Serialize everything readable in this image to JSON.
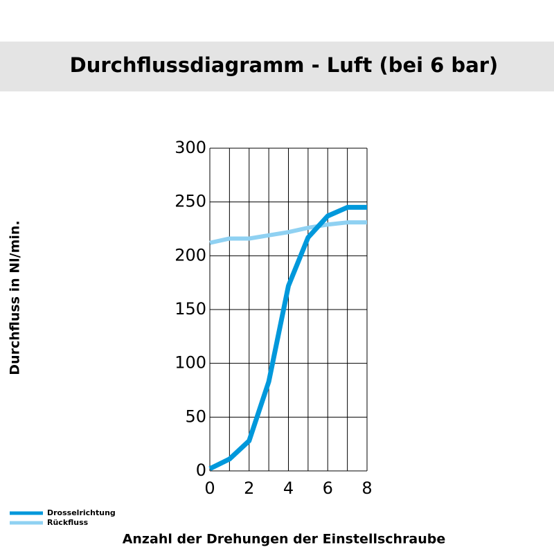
{
  "chart_data": {
    "type": "line",
    "title": "Durchflussdiagramm - Luft (bei 6 bar)",
    "x_label": "Anzahl der Drehungen der Einstellschraube",
    "y_label": "Durchfluss in Nl/min.",
    "x": [
      0,
      1,
      2,
      3,
      4,
      5,
      6,
      7,
      8
    ],
    "series": [
      {
        "name": "Drosselrichtung",
        "color": "#0098db",
        "values": [
          2,
          11,
          28,
          83,
          172,
          217,
          237,
          245,
          245
        ]
      },
      {
        "name": "Rückfluss",
        "color": "#8fd1f2",
        "values": [
          212,
          216,
          216,
          219,
          222,
          226,
          229,
          231,
          231
        ]
      }
    ],
    "xlim": [
      0,
      8
    ],
    "ylim": [
      0,
      300
    ],
    "xticks": [
      0,
      2,
      4,
      6,
      8
    ],
    "yticks": [
      0,
      50,
      100,
      150,
      200,
      250,
      300
    ],
    "xgrid": [
      0,
      1,
      2,
      3,
      4,
      5,
      6,
      7,
      8
    ],
    "grid": true,
    "legend": "bottom-left"
  }
}
